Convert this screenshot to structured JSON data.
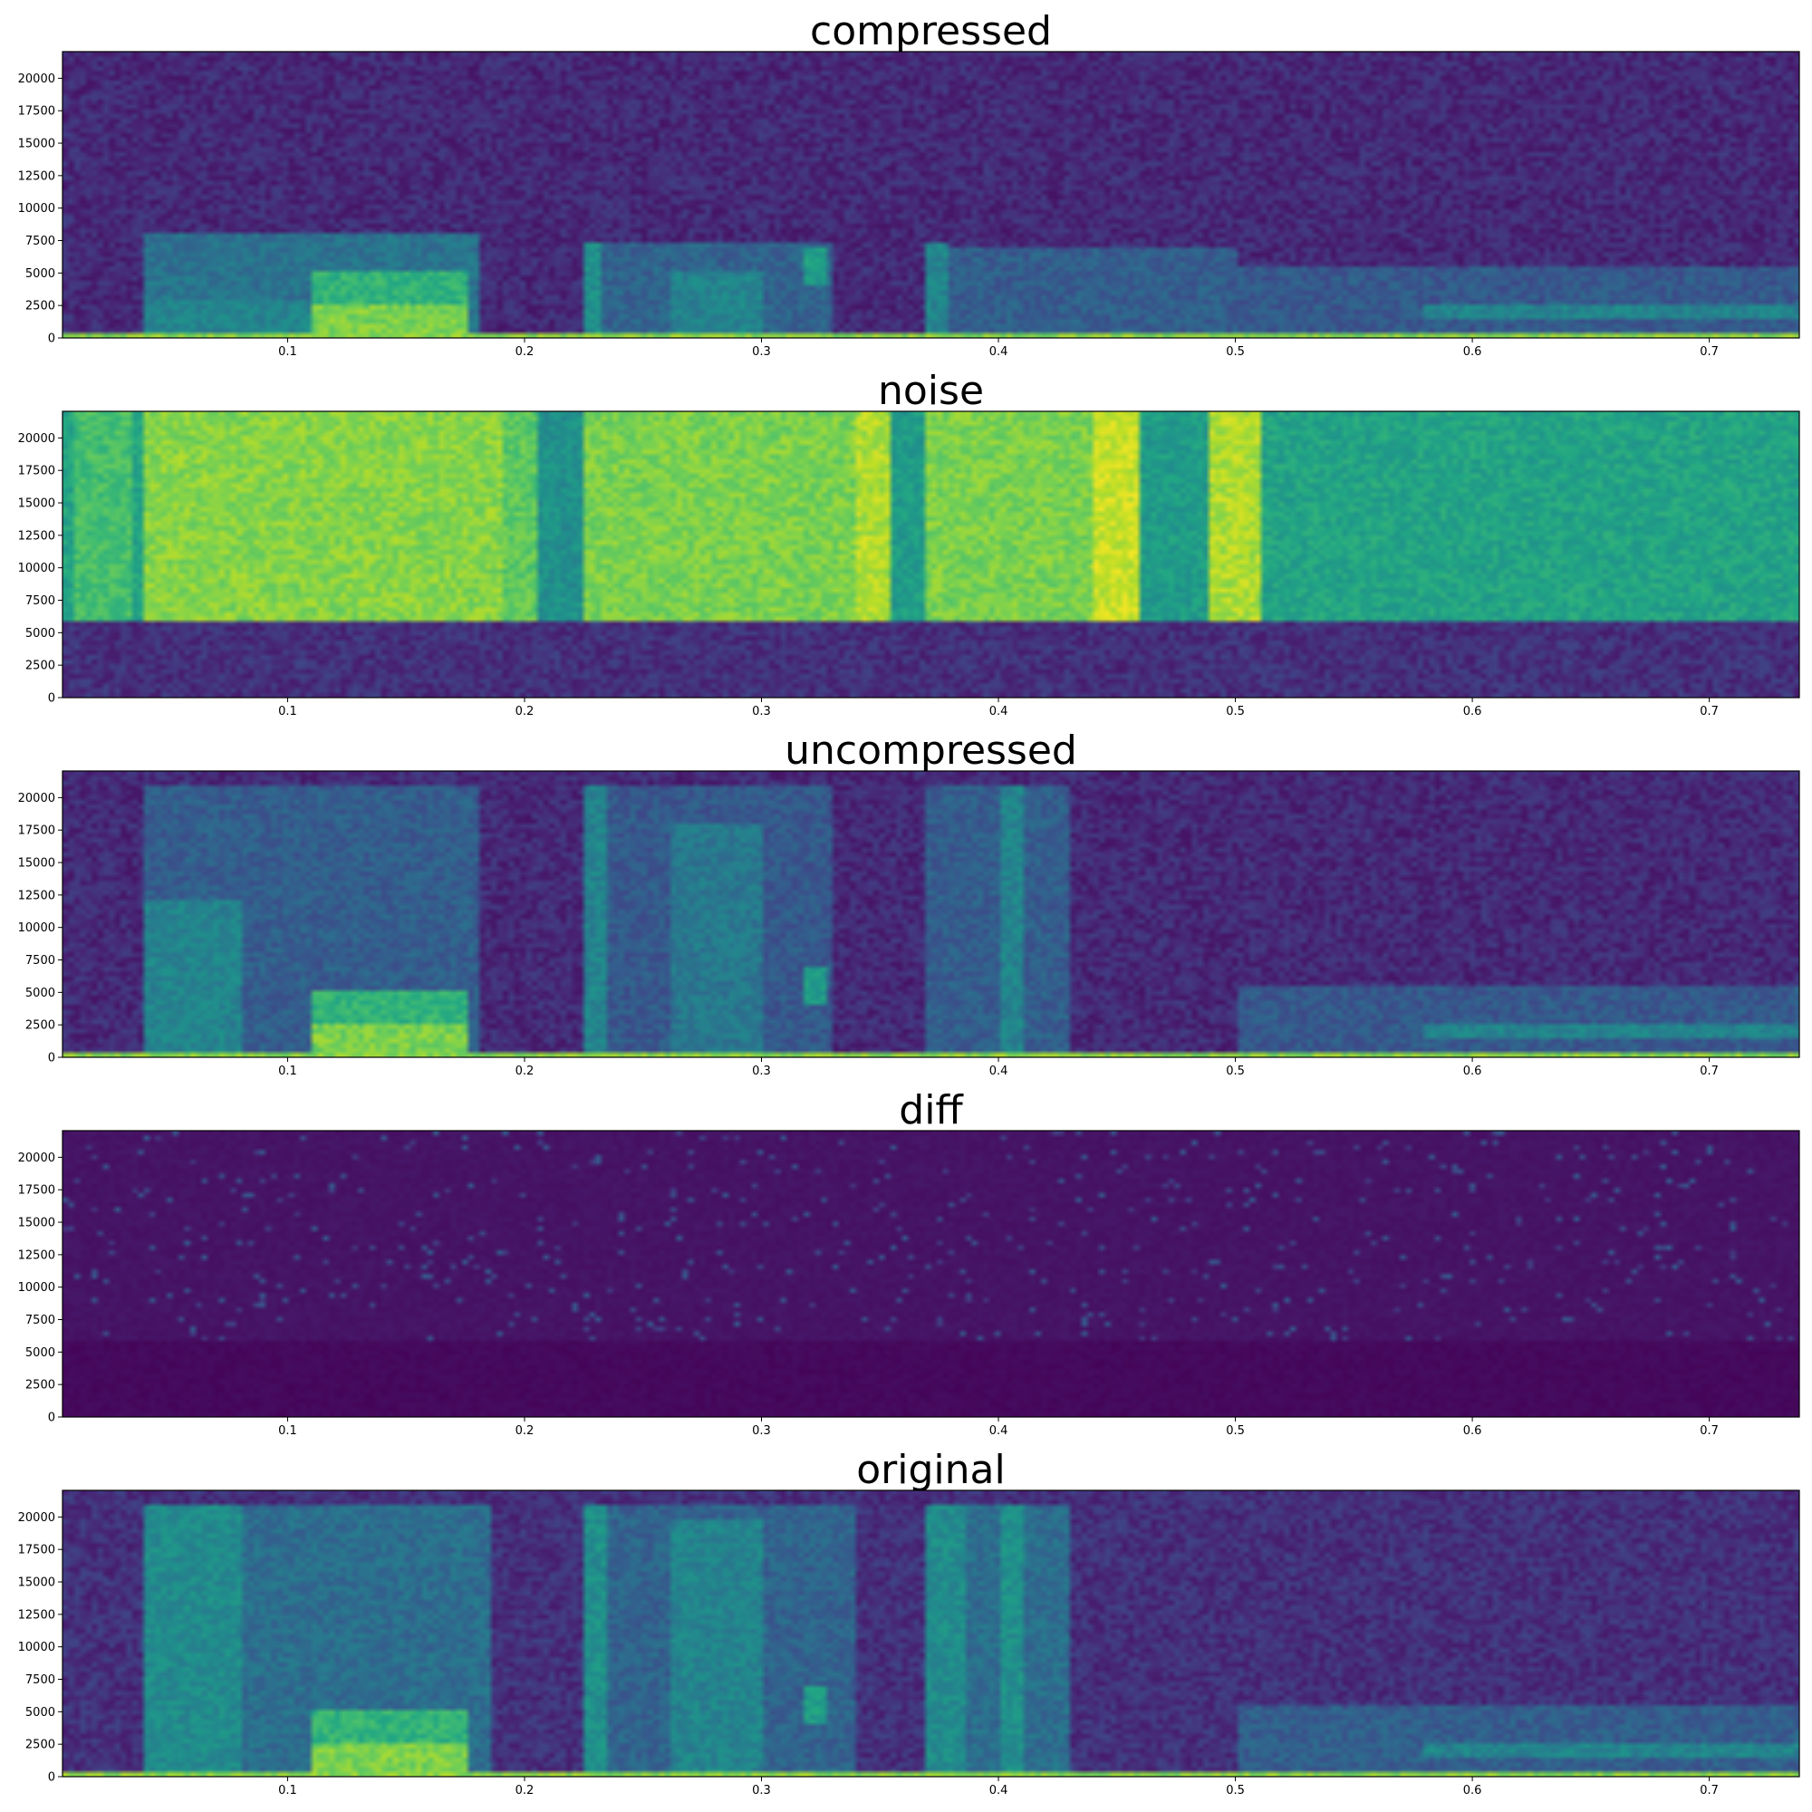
{
  "chart_data": [
    {
      "type": "heatmap",
      "title": "compressed",
      "xlabel": "",
      "ylabel": "",
      "xlim": [
        0.005,
        0.738
      ],
      "ylim": [
        0,
        22050
      ],
      "xticks": [
        "0.1",
        "0.2",
        "0.3",
        "0.4",
        "0.5",
        "0.6",
        "0.7"
      ],
      "yticks": [
        "0",
        "2500",
        "5000",
        "7500",
        "10000",
        "12500",
        "15000",
        "17500",
        "20000"
      ],
      "colormap": "viridis",
      "grid": false,
      "background_level": 0.12,
      "regions": [
        {
          "x": [
            0.04,
            0.18
          ],
          "y": [
            0,
            8000
          ],
          "level": 0.38
        },
        {
          "x": [
            0.04,
            0.11
          ],
          "y": [
            0,
            3000
          ],
          "level": 0.45
        },
        {
          "x": [
            0.11,
            0.175
          ],
          "y": [
            0,
            5000
          ],
          "level": 0.65
        },
        {
          "x": [
            0.11,
            0.175
          ],
          "y": [
            0,
            2500
          ],
          "level": 0.8
        },
        {
          "x": [
            0.225,
            0.33
          ],
          "y": [
            0,
            7500
          ],
          "level": 0.32
        },
        {
          "x": [
            0.225,
            0.232
          ],
          "y": [
            0,
            7500
          ],
          "level": 0.5
        },
        {
          "x": [
            0.262,
            0.3
          ],
          "y": [
            0,
            5000
          ],
          "level": 0.45
        },
        {
          "x": [
            0.318,
            0.328
          ],
          "y": [
            4000,
            7000
          ],
          "level": 0.55
        },
        {
          "x": [
            0.37,
            0.5
          ],
          "y": [
            0,
            7000
          ],
          "level": 0.3
        },
        {
          "x": [
            0.37,
            0.38
          ],
          "y": [
            0,
            7500
          ],
          "level": 0.45
        },
        {
          "x": [
            0.5,
            0.738
          ],
          "y": [
            0,
            5500
          ],
          "level": 0.28
        },
        {
          "x": [
            0.58,
            0.738
          ],
          "y": [
            1500,
            2500
          ],
          "level": 0.45
        },
        {
          "x": [
            0.005,
            0.738
          ],
          "y": [
            0,
            350
          ],
          "level": 0.82
        }
      ]
    },
    {
      "type": "heatmap",
      "title": "noise",
      "xlabel": "",
      "ylabel": "",
      "xlim": [
        0.005,
        0.738
      ],
      "ylim": [
        0,
        22050
      ],
      "xticks": [
        "0.1",
        "0.2",
        "0.3",
        "0.4",
        "0.5",
        "0.6",
        "0.7"
      ],
      "yticks": [
        "0",
        "2500",
        "5000",
        "7500",
        "10000",
        "12500",
        "15000",
        "17500",
        "20000"
      ],
      "colormap": "viridis",
      "grid": false,
      "background_level": 0.14,
      "regions": [
        {
          "x": [
            0.005,
            0.738
          ],
          "y": [
            6000,
            22050
          ],
          "level": 0.58
        },
        {
          "x": [
            0.04,
            0.19
          ],
          "y": [
            6000,
            22050
          ],
          "level": 0.82
        },
        {
          "x": [
            0.19,
            0.205
          ],
          "y": [
            6000,
            22050
          ],
          "level": 0.75
        },
        {
          "x": [
            0.205,
            0.225
          ],
          "y": [
            6000,
            22050
          ],
          "level": 0.5
        },
        {
          "x": [
            0.225,
            0.34
          ],
          "y": [
            6000,
            22050
          ],
          "level": 0.8
        },
        {
          "x": [
            0.34,
            0.355
          ],
          "y": [
            6000,
            22050
          ],
          "level": 0.88
        },
        {
          "x": [
            0.355,
            0.37
          ],
          "y": [
            6000,
            22050
          ],
          "level": 0.55
        },
        {
          "x": [
            0.37,
            0.44
          ],
          "y": [
            6000,
            22050
          ],
          "level": 0.8
        },
        {
          "x": [
            0.44,
            0.46
          ],
          "y": [
            6000,
            22050
          ],
          "level": 0.92
        },
        {
          "x": [
            0.46,
            0.49
          ],
          "y": [
            6000,
            22050
          ],
          "level": 0.55
        },
        {
          "x": [
            0.49,
            0.51
          ],
          "y": [
            6000,
            22050
          ],
          "level": 0.88
        },
        {
          "x": [
            0.51,
            0.738
          ],
          "y": [
            6000,
            22050
          ],
          "level": 0.58
        },
        {
          "x": [
            0.01,
            0.035
          ],
          "y": [
            6000,
            22050
          ],
          "level": 0.7
        }
      ]
    },
    {
      "type": "heatmap",
      "title": "uncompressed",
      "xlabel": "",
      "ylabel": "",
      "xlim": [
        0.005,
        0.738
      ],
      "ylim": [
        0,
        22050
      ],
      "xticks": [
        "0.1",
        "0.2",
        "0.3",
        "0.4",
        "0.5",
        "0.6",
        "0.7"
      ],
      "yticks": [
        "0",
        "2500",
        "5000",
        "7500",
        "10000",
        "12500",
        "15000",
        "17500",
        "20000"
      ],
      "colormap": "viridis",
      "grid": false,
      "background_level": 0.12,
      "regions": [
        {
          "x": [
            0.04,
            0.18
          ],
          "y": [
            0,
            21000
          ],
          "level": 0.3
        },
        {
          "x": [
            0.04,
            0.08
          ],
          "y": [
            0,
            12000
          ],
          "level": 0.45
        },
        {
          "x": [
            0.11,
            0.175
          ],
          "y": [
            0,
            5000
          ],
          "level": 0.65
        },
        {
          "x": [
            0.11,
            0.175
          ],
          "y": [
            0,
            2500
          ],
          "level": 0.8
        },
        {
          "x": [
            0.225,
            0.33
          ],
          "y": [
            0,
            21000
          ],
          "level": 0.28
        },
        {
          "x": [
            0.225,
            0.235
          ],
          "y": [
            0,
            21000
          ],
          "level": 0.45
        },
        {
          "x": [
            0.262,
            0.3
          ],
          "y": [
            0,
            18000
          ],
          "level": 0.4
        },
        {
          "x": [
            0.318,
            0.328
          ],
          "y": [
            4000,
            7000
          ],
          "level": 0.55
        },
        {
          "x": [
            0.37,
            0.43
          ],
          "y": [
            0,
            21000
          ],
          "level": 0.3
        },
        {
          "x": [
            0.4,
            0.41
          ],
          "y": [
            0,
            21000
          ],
          "level": 0.45
        },
        {
          "x": [
            0.5,
            0.738
          ],
          "y": [
            0,
            5500
          ],
          "level": 0.28
        },
        {
          "x": [
            0.58,
            0.738
          ],
          "y": [
            1500,
            2500
          ],
          "level": 0.45
        },
        {
          "x": [
            0.005,
            0.738
          ],
          "y": [
            0,
            350
          ],
          "level": 0.82
        }
      ]
    },
    {
      "type": "heatmap",
      "title": "diff",
      "xlabel": "",
      "ylabel": "",
      "xlim": [
        0.005,
        0.738
      ],
      "ylim": [
        0,
        22050
      ],
      "xticks": [
        "0.1",
        "0.2",
        "0.3",
        "0.4",
        "0.5",
        "0.6",
        "0.7"
      ],
      "yticks": [
        "0",
        "2500",
        "5000",
        "7500",
        "10000",
        "12500",
        "15000",
        "17500",
        "20000"
      ],
      "colormap": "viridis",
      "grid": false,
      "background_level": 0.04,
      "regions": [
        {
          "x": [
            0.005,
            0.738
          ],
          "y": [
            0,
            6000
          ],
          "level": 0.01
        }
      ]
    },
    {
      "type": "heatmap",
      "title": "original",
      "xlabel": "",
      "ylabel": "",
      "xlim": [
        0.005,
        0.738
      ],
      "ylim": [
        0,
        22050
      ],
      "xticks": [
        "0.1",
        "0.2",
        "0.3",
        "0.4",
        "0.5",
        "0.6",
        "0.7"
      ],
      "yticks": [
        "0",
        "2500",
        "5000",
        "7500",
        "10000",
        "12500",
        "15000",
        "17500",
        "20000"
      ],
      "colormap": "viridis",
      "grid": false,
      "background_level": 0.14,
      "regions": [
        {
          "x": [
            0.04,
            0.185
          ],
          "y": [
            0,
            21000
          ],
          "level": 0.36
        },
        {
          "x": [
            0.04,
            0.08
          ],
          "y": [
            0,
            21000
          ],
          "level": 0.48
        },
        {
          "x": [
            0.11,
            0.175
          ],
          "y": [
            0,
            5000
          ],
          "level": 0.65
        },
        {
          "x": [
            0.11,
            0.175
          ],
          "y": [
            0,
            2500
          ],
          "level": 0.8
        },
        {
          "x": [
            0.225,
            0.34
          ],
          "y": [
            0,
            21000
          ],
          "level": 0.32
        },
        {
          "x": [
            0.225,
            0.235
          ],
          "y": [
            0,
            21000
          ],
          "level": 0.5
        },
        {
          "x": [
            0.262,
            0.3
          ],
          "y": [
            0,
            20000
          ],
          "level": 0.45
        },
        {
          "x": [
            0.318,
            0.328
          ],
          "y": [
            4000,
            7000
          ],
          "level": 0.55
        },
        {
          "x": [
            0.37,
            0.43
          ],
          "y": [
            0,
            21000
          ],
          "level": 0.36
        },
        {
          "x": [
            0.37,
            0.385
          ],
          "y": [
            0,
            21000
          ],
          "level": 0.48
        },
        {
          "x": [
            0.4,
            0.41
          ],
          "y": [
            0,
            21000
          ],
          "level": 0.5
        },
        {
          "x": [
            0.5,
            0.738
          ],
          "y": [
            0,
            5500
          ],
          "level": 0.3
        },
        {
          "x": [
            0.58,
            0.738
          ],
          "y": [
            1500,
            2500
          ],
          "level": 0.45
        },
        {
          "x": [
            0.005,
            0.738
          ],
          "y": [
            0,
            350
          ],
          "level": 0.82
        }
      ]
    }
  ]
}
